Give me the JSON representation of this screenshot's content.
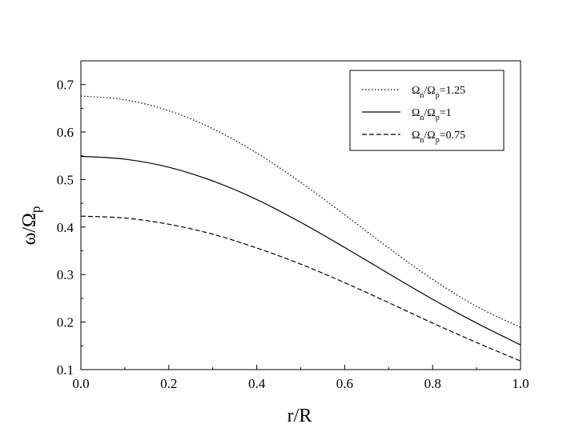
{
  "chart_data": {
    "type": "line",
    "xlabel": "r/R",
    "ylabel": {
      "main": "ω/Ω",
      "sub": "p"
    },
    "xlim": [
      0.0,
      1.0
    ],
    "ylim": [
      0.1,
      0.75
    ],
    "x_ticks": [
      "0.0",
      "0.2",
      "0.4",
      "0.6",
      "0.8",
      "1.0"
    ],
    "y_ticks": [
      "0.1",
      "0.2",
      "0.3",
      "0.4",
      "0.5",
      "0.6",
      "0.7"
    ],
    "legend_position": "top-right",
    "grid": false,
    "x": [
      0.0,
      0.1,
      0.2,
      0.3,
      0.4,
      0.5,
      0.6,
      0.7,
      0.8,
      0.9,
      1.0
    ],
    "series": [
      {
        "name": {
          "a": "Ω",
          "a_sub": "n",
          "mid": "/Ω",
          "b_sub": "p",
          "tail": "=1.25"
        },
        "line_style": "dotted",
        "values": [
          0.676,
          0.668,
          0.645,
          0.607,
          0.556,
          0.494,
          0.426,
          0.356,
          0.29,
          0.233,
          0.189
        ]
      },
      {
        "name": {
          "a": "Ω",
          "a_sub": "n",
          "mid": "/Ω",
          "b_sub": "p",
          "tail": "=1"
        },
        "line_style": "solid",
        "values": [
          0.549,
          0.543,
          0.526,
          0.497,
          0.458,
          0.41,
          0.357,
          0.302,
          0.248,
          0.198,
          0.152
        ]
      },
      {
        "name": {
          "a": "Ω",
          "a_sub": "n",
          "mid": "/Ω",
          "b_sub": "p",
          "tail": "=0.75"
        },
        "line_style": "dashed",
        "values": [
          0.423,
          0.419,
          0.406,
          0.385,
          0.356,
          0.322,
          0.283,
          0.241,
          0.198,
          0.157,
          0.118
        ]
      }
    ]
  }
}
